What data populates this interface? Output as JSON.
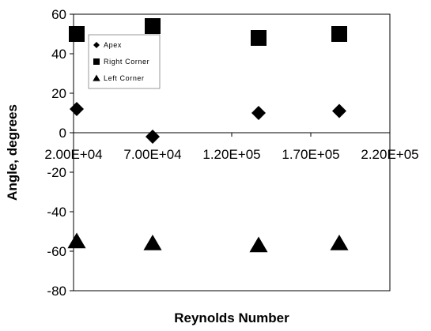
{
  "chart_data": {
    "type": "scatter",
    "xlabel": "Reynolds Number",
    "ylabel": "Angle, degrees",
    "xlim": [
      20000,
      220000
    ],
    "ylim": [
      -80,
      60
    ],
    "xticks": [
      20000,
      70000,
      120000,
      170000,
      220000
    ],
    "xtick_labels": [
      "2.00E+04",
      "7.00E+04",
      "1.20E+05",
      "1.70E+05",
      "2.20E+05"
    ],
    "yticks": [
      60,
      40,
      20,
      0,
      -20,
      -40,
      -60,
      -80
    ],
    "ytick_labels": [
      "60",
      "40",
      "20",
      "0",
      "-20",
      "-40",
      "-60",
      "-80"
    ],
    "grid": false,
    "legend_position": "top-left",
    "series": [
      {
        "name": "Apex",
        "marker": "diamond",
        "color": "#000000",
        "points": [
          [
            22000,
            12
          ],
          [
            70000,
            -2
          ],
          [
            137000,
            10
          ],
          [
            188000,
            11
          ]
        ]
      },
      {
        "name": "Right Corner",
        "marker": "square",
        "color": "#000000",
        "points": [
          [
            22000,
            50
          ],
          [
            70000,
            54
          ],
          [
            137000,
            48
          ],
          [
            188000,
            50
          ]
        ]
      },
      {
        "name": "Left Corner",
        "marker": "triangle",
        "color": "#000000",
        "points": [
          [
            22000,
            -55
          ],
          [
            70000,
            -56
          ],
          [
            137000,
            -57
          ],
          [
            188000,
            -56
          ]
        ]
      }
    ]
  }
}
